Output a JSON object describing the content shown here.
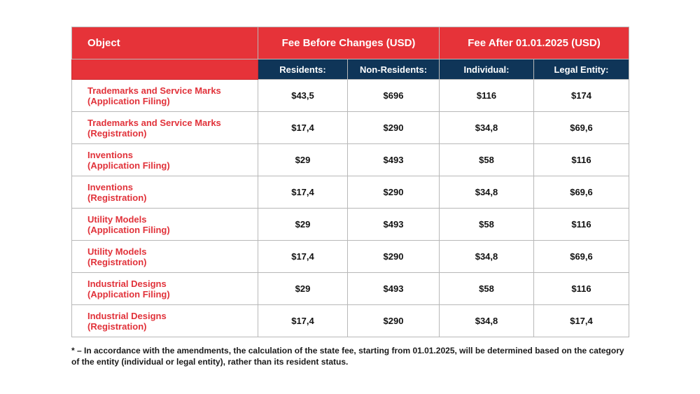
{
  "table": {
    "header_top": {
      "object": "Object",
      "before": "Fee Before Changes (USD)",
      "after": "Fee After 01.01.2025 (USD)"
    },
    "header_sub": {
      "residents": "Residents:",
      "non_residents": "Non-Residents:",
      "individual": "Individual:",
      "legal_entity": "Legal Entity:"
    },
    "rows": [
      {
        "line1": "Trademarks and Service Marks",
        "line2": "(Application Filing)",
        "residents": "$43,5",
        "non_residents": "$696",
        "individual": "$116",
        "legal": "$174"
      },
      {
        "line1": "Trademarks and Service Marks",
        "line2": "(Registration)",
        "residents": "$17,4",
        "non_residents": "$290",
        "individual": "$34,8",
        "legal": "$69,6"
      },
      {
        "line1": "Inventions",
        "line2": "(Application Filing)",
        "residents": "$29",
        "non_residents": "$493",
        "individual": "$58",
        "legal": "$116"
      },
      {
        "line1": "Inventions",
        "line2": "(Registration)",
        "residents": "$17,4",
        "non_residents": "$290",
        "individual": "$34,8",
        "legal": "$69,6"
      },
      {
        "line1": "Utility Models",
        "line2": "(Application Filing)",
        "residents": "$29",
        "non_residents": "$493",
        "individual": "$58",
        "legal": "$116"
      },
      {
        "line1": "Utility Models",
        "line2": "(Registration)",
        "residents": "$17,4",
        "non_residents": "$290",
        "individual": "$34,8",
        "legal": "$69,6"
      },
      {
        "line1": "Industrial Designs",
        "line2": "(Application Filing)",
        "residents": "$29",
        "non_residents": "$493",
        "individual": "$58",
        "legal": "$116"
      },
      {
        "line1": "Industrial Designs",
        "line2": "(Registration)",
        "residents": "$17,4",
        "non_residents": "$290",
        "individual": "$34,8",
        "legal": "$17,4"
      }
    ]
  },
  "footnote": "* – In accordance with the amendments, the calculation of the state fee, starting from 01.01.2025, will be determined based on the category of the entity (individual or legal entity), rather than its resident status.",
  "colors": {
    "header_red": "#e63339",
    "header_navy": "#0f3558",
    "object_text_red": "#e1323a"
  }
}
